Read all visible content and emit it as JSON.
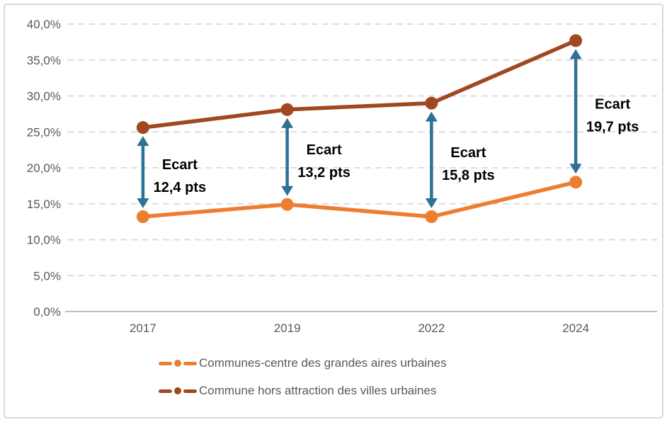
{
  "chart_data": {
    "type": "line",
    "title": "",
    "x": [
      "2017",
      "2019",
      "2022",
      "2024"
    ],
    "series": [
      {
        "name": "Communes-centre des grandes aires urbaines",
        "color": "#ED7D31",
        "values": [
          13.2,
          14.9,
          13.2,
          18.0
        ]
      },
      {
        "name": "Commune hors attraction des villes urbaines",
        "color": "#A0481F",
        "values": [
          25.6,
          28.1,
          29.0,
          37.7
        ]
      }
    ],
    "ylim": [
      0,
      40
    ],
    "ytick_step": 5,
    "ytick_labels": [
      "0,0%",
      "5,0%",
      "10,0%",
      "15,0%",
      "20,0%",
      "25,0%",
      "30,0%",
      "35,0%",
      "40,0%"
    ],
    "grid": "horizontal-dashed",
    "legend_position": "bottom",
    "annotations": [
      {
        "x": "2017",
        "x_index": 0,
        "line1": "Ecart",
        "line2": "12,4 pts",
        "gap_pts": 12.4
      },
      {
        "x": "2019",
        "x_index": 1,
        "line1": "Ecart",
        "line2": "13,2 pts",
        "gap_pts": 13.2
      },
      {
        "x": "2022",
        "x_index": 2,
        "line1": "Ecart",
        "line2": "15,8 pts",
        "gap_pts": 15.8
      },
      {
        "x": "2024",
        "x_index": 3,
        "line1": "Ecart",
        "line2": "19,7 pts",
        "gap_pts": 19.7
      }
    ],
    "style": {
      "arrow_color": "#2D7194",
      "axis_label_color": "#595959",
      "gridline_color": "#D9D9D9",
      "axis_line_color": "#BFBFBF",
      "annotation_text_color": "#000000"
    }
  }
}
